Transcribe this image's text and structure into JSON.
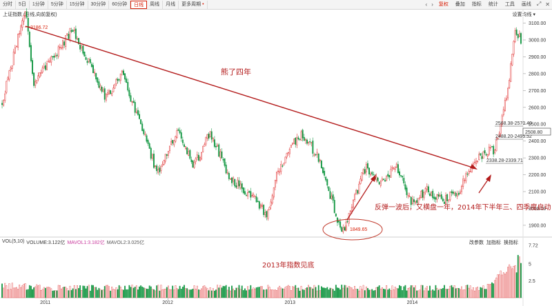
{
  "toolbar": {
    "periods": [
      "分时",
      "5日",
      "1分钟",
      "5分钟",
      "15分钟",
      "30分钟",
      "60分钟",
      "日线",
      "周线",
      "月线",
      "更多周期"
    ],
    "active_index": 7,
    "right": {
      "chart_type": "复权",
      "overlay": "叠加",
      "indicator": "指标",
      "stats": "统计",
      "tools": "工具",
      "draw": "画线"
    }
  },
  "index_label": "上证指数 (日线,向前复权)",
  "settings_label": "设置均线",
  "colors": {
    "up": "#e03030",
    "down": "#1a9a48",
    "annotation": "#b31b1b",
    "price_line": "#333333"
  },
  "chart_data": [
    {
      "type": "candlestick",
      "title": "",
      "x_ticks": [
        "2011",
        "2012",
        "2013",
        "2014"
      ],
      "y_ticks": [
        1900,
        2000,
        2100,
        2200,
        2300,
        2400,
        2500,
        2600,
        2700,
        2800,
        2900,
        3000,
        3100
      ],
      "ylim": [
        1830,
        3180
      ],
      "key_points": [
        {
          "t": 0.0,
          "v": 2630
        },
        {
          "t": 0.045,
          "v": 3186
        },
        {
          "t": 0.06,
          "v": 2750
        },
        {
          "t": 0.1,
          "v": 2900
        },
        {
          "t": 0.135,
          "v": 3067
        },
        {
          "t": 0.17,
          "v": 2850
        },
        {
          "t": 0.2,
          "v": 2650
        },
        {
          "t": 0.23,
          "v": 2800
        },
        {
          "t": 0.27,
          "v": 2470
        },
        {
          "t": 0.3,
          "v": 2200
        },
        {
          "t": 0.34,
          "v": 2470
        },
        {
          "t": 0.37,
          "v": 2250
        },
        {
          "t": 0.4,
          "v": 2450
        },
        {
          "t": 0.44,
          "v": 2180
        },
        {
          "t": 0.48,
          "v": 2080
        },
        {
          "t": 0.51,
          "v": 1960
        },
        {
          "t": 0.53,
          "v": 2220
        },
        {
          "t": 0.56,
          "v": 2380
        },
        {
          "t": 0.58,
          "v": 2440
        },
        {
          "t": 0.61,
          "v": 2300
        },
        {
          "t": 0.635,
          "v": 2050
        },
        {
          "t": 0.655,
          "v": 1849
        },
        {
          "t": 0.7,
          "v": 2240
        },
        {
          "t": 0.73,
          "v": 2150
        },
        {
          "t": 0.76,
          "v": 2240
        },
        {
          "t": 0.79,
          "v": 2030
        },
        {
          "t": 0.82,
          "v": 2110
        },
        {
          "t": 0.85,
          "v": 2050
        },
        {
          "t": 0.88,
          "v": 2100
        },
        {
          "t": 0.905,
          "v": 2250
        },
        {
          "t": 0.93,
          "v": 2340
        },
        {
          "t": 0.95,
          "v": 2350
        },
        {
          "t": 0.975,
          "v": 2700
        },
        {
          "t": 0.99,
          "v": 3070
        },
        {
          "t": 1.0,
          "v": 3000
        }
      ],
      "price_labels": {
        "high": "3186.72",
        "low": "1849.65"
      },
      "price_boxes": [
        "2568.38-2570.40",
        "2488.20-2495.52",
        "2338.28-2339.71"
      ],
      "current_price": "2508.80",
      "annotations": {
        "main_trend": "熊了四年",
        "rebound": "反弹一波后，又横盘一年，2014年下半年三、四季度启动"
      }
    },
    {
      "type": "bar",
      "title": "VOL(5,10)",
      "legend": [
        {
          "name": "VOLUME",
          "value": "3.122亿"
        },
        {
          "name": "MAVOL1",
          "value": "3.182亿"
        },
        {
          "name": "MAVOL2",
          "value": "3.025亿"
        }
      ],
      "y_ticks": [
        "7.72",
        "5",
        "2.5"
      ],
      "ylim": [
        0,
        7.72
      ],
      "tools": [
        "改参数",
        "加指标",
        "换指标"
      ],
      "annotation": "2013年指数见底"
    }
  ]
}
